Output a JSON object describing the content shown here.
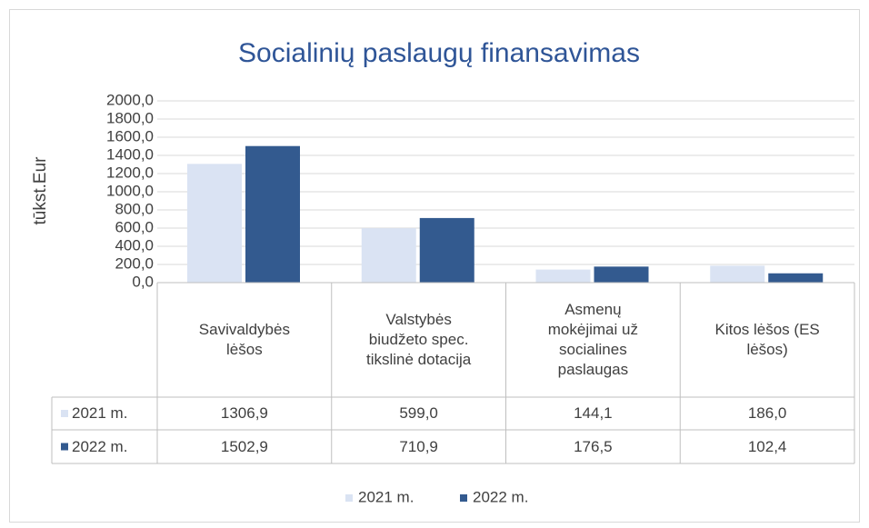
{
  "chart_data": {
    "type": "bar",
    "title": "Socialinių paslaugų finansavimas",
    "y_label": "tūkst.Eur",
    "categories": [
      "Savivaldybės lėšos",
      "Valstybės biudžeto spec. tikslinė dotacija",
      "Asmenų mokėjimai už socialines paslaugas",
      "Kitos lėšos (ES lėšos)"
    ],
    "series": [
      {
        "name": "2021 m.",
        "color": "#dae3f3",
        "values": [
          1306.9,
          599.0,
          144.1,
          186.0
        ],
        "value_labels": [
          "1306,9",
          "599,0",
          "144,1",
          "186,0"
        ]
      },
      {
        "name": "2022 m.",
        "color": "#335a8f",
        "values": [
          1502.9,
          710.9,
          176.5,
          102.4
        ],
        "value_labels": [
          "1502,9",
          "710,9",
          "176,5",
          "102,4"
        ]
      }
    ],
    "ylim": [
      0,
      2000
    ],
    "yticks": [
      {
        "value": 0,
        "label": "0,0"
      },
      {
        "value": 200,
        "label": "200,0"
      },
      {
        "value": 400,
        "label": "400,0"
      },
      {
        "value": 600,
        "label": "600,0"
      },
      {
        "value": 800,
        "label": "800,0"
      },
      {
        "value": 1000,
        "label": "1000,0"
      },
      {
        "value": 1200,
        "label": "1200,0"
      },
      {
        "value": 1400,
        "label": "1400,0"
      },
      {
        "value": 1600,
        "label": "1600,0"
      },
      {
        "value": 1800,
        "label": "1800,0"
      },
      {
        "value": 2000,
        "label": "2000,0"
      }
    ],
    "grid": true,
    "legend": "bottom",
    "data_table": true
  }
}
